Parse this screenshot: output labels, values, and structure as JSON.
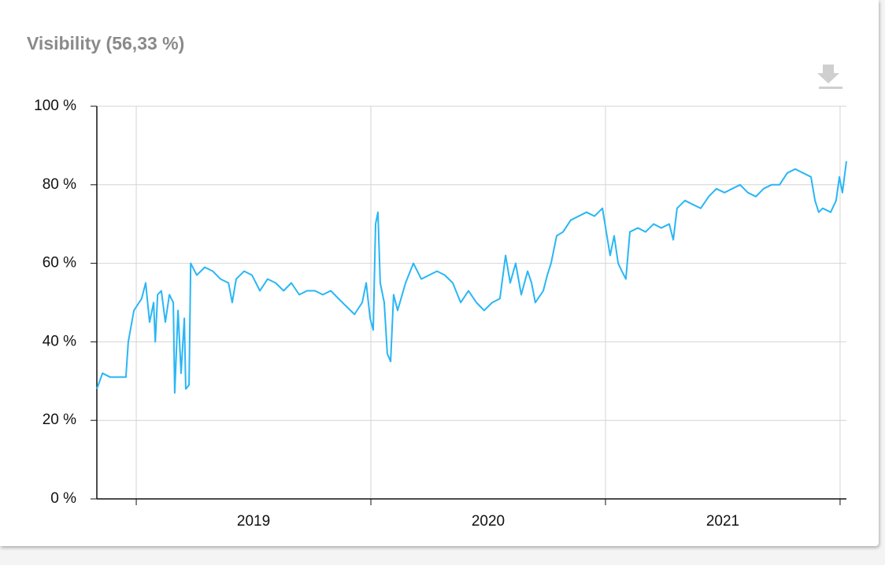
{
  "chart_data": {
    "type": "line",
    "title": "Visibility (56,33 %)",
    "series": [
      {
        "name": "Visibility",
        "color": "#29b6f6",
        "x": [
          2018.832,
          2018.856,
          2018.889,
          2018.923,
          2018.956,
          2018.966,
          2018.99,
          2019.023,
          2019.04,
          2019.057,
          2019.074,
          2019.081,
          2019.091,
          2019.107,
          2019.124,
          2019.141,
          2019.158,
          2019.164,
          2019.178,
          2019.191,
          2019.205,
          2019.211,
          2019.225,
          2019.232,
          2019.258,
          2019.292,
          2019.326,
          2019.359,
          2019.393,
          2019.409,
          2019.426,
          2019.46,
          2019.493,
          2019.527,
          2019.56,
          2019.594,
          2019.628,
          2019.661,
          2019.695,
          2019.728,
          2019.762,
          2019.795,
          2019.829,
          2019.862,
          2019.896,
          2019.93,
          2019.963,
          2019.98,
          2019.997,
          2020.01,
          2020.02,
          2020.03,
          2020.04,
          2020.057,
          2020.07,
          2020.084,
          2020.097,
          2020.114,
          2020.148,
          2020.181,
          2020.215,
          2020.248,
          2020.282,
          2020.315,
          2020.349,
          2020.383,
          2020.416,
          2020.45,
          2020.483,
          2020.517,
          2020.55,
          2020.574,
          2020.594,
          2020.617,
          2020.641,
          2020.668,
          2020.685,
          2020.701,
          2020.735,
          2020.752,
          2020.768,
          2020.792,
          2020.819,
          2020.852,
          2020.886,
          2020.919,
          2020.953,
          2020.987,
          2021.02,
          2021.037,
          2021.054,
          2021.07,
          2021.087,
          2021.104,
          2021.138,
          2021.171,
          2021.205,
          2021.238,
          2021.272,
          2021.289,
          2021.305,
          2021.339,
          2021.372,
          2021.406,
          2021.44,
          2021.473,
          2021.507,
          2021.54,
          2021.574,
          2021.607,
          2021.641,
          2021.674,
          2021.708,
          2021.742,
          2021.775,
          2021.809,
          2021.842,
          2021.876,
          2021.893,
          2021.909,
          2021.926,
          2021.96,
          2021.983,
          2021.997,
          2022.01,
          2022.027
        ],
        "values": [
          28,
          32,
          31,
          31,
          31,
          40,
          48,
          51,
          55,
          45,
          50,
          40,
          52,
          53,
          45,
          52,
          50,
          27,
          48,
          32,
          46,
          28,
          29,
          60,
          57,
          59,
          58,
          56,
          55,
          50,
          56,
          58,
          57,
          53,
          56,
          55,
          53,
          55,
          52,
          53,
          53,
          52,
          53,
          51,
          49,
          47,
          50,
          55,
          46,
          43,
          70,
          73,
          55,
          50,
          37,
          35,
          52,
          48,
          55,
          60,
          56,
          57,
          58,
          57,
          55,
          50,
          53,
          50,
          48,
          50,
          51,
          62,
          55,
          60,
          52,
          58,
          55,
          50,
          53,
          57,
          60,
          67,
          68,
          71,
          72,
          73,
          72,
          74,
          62,
          67,
          60,
          58,
          56,
          68,
          69,
          68,
          70,
          69,
          70,
          66,
          74,
          76,
          75,
          74,
          77,
          79,
          78,
          79,
          80,
          78,
          77,
          79,
          80,
          80,
          83,
          84,
          83,
          82,
          76,
          73,
          74,
          73,
          76,
          82,
          78,
          86
        ]
      }
    ],
    "xlim": [
      2018.832,
      2022.027
    ],
    "xgrid": [
      2019,
      2020,
      2021,
      2022
    ],
    "xticks": [
      {
        "value": 2019.5,
        "label": "2019"
      },
      {
        "value": 2020.5,
        "label": "2020"
      },
      {
        "value": 2021.5,
        "label": "2021"
      }
    ],
    "ylim": [
      0,
      100
    ],
    "yticks": [
      {
        "value": 0,
        "label": "0 %"
      },
      {
        "value": 20,
        "label": "20 %"
      },
      {
        "value": 40,
        "label": "40 %"
      },
      {
        "value": 60,
        "label": "60 %"
      },
      {
        "value": 80,
        "label": "80 %"
      },
      {
        "value": 100,
        "label": "100 %"
      }
    ],
    "grid": true
  }
}
